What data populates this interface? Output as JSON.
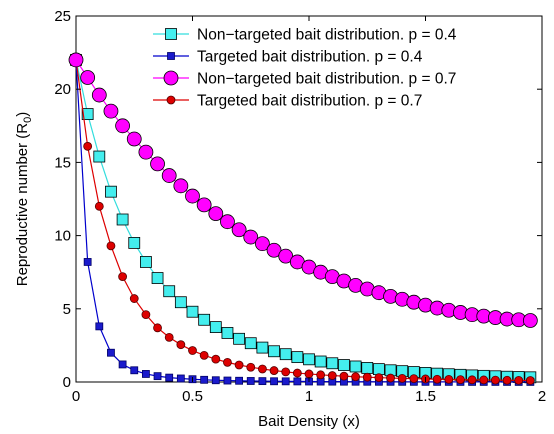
{
  "chart_data": {
    "type": "line",
    "xlabel": "Bait Density (x)",
    "ylabel_main": "Reproductive number (R",
    "ylabel_sub": "0",
    "ylabel_tail": ")",
    "xlim": [
      0,
      2
    ],
    "ylim": [
      0,
      25
    ],
    "xticks": [
      0,
      0.5,
      1,
      1.5,
      2
    ],
    "xtick_labels": [
      "0",
      "0.5",
      "1",
      "1.5",
      "2"
    ],
    "yticks": [
      0,
      5,
      10,
      15,
      20,
      25
    ],
    "ytick_labels": [
      "0",
      "5",
      "10",
      "15",
      "20",
      "25"
    ],
    "legend_position": "top-right",
    "grid": false,
    "x": [
      0,
      0.05,
      0.1,
      0.15,
      0.2,
      0.25,
      0.3,
      0.35,
      0.4,
      0.45,
      0.5,
      0.55,
      0.6,
      0.65,
      0.7,
      0.75,
      0.8,
      0.85,
      0.9,
      0.95,
      1,
      1.05,
      1.1,
      1.15,
      1.2,
      1.25,
      1.3,
      1.35,
      1.4,
      1.45,
      1.5,
      1.55,
      1.6,
      1.65,
      1.7,
      1.75,
      1.8,
      1.85,
      1.9,
      1.95
    ],
    "series": [
      {
        "name": "Non−targeted bait distribution. p = 0.4",
        "line_color": "#33dddd",
        "marker": "square",
        "marker_fill": "#44eeee",
        "marker_edge": "#000000",
        "values": [
          22.0,
          18.3,
          15.4,
          13.0,
          11.1,
          9.5,
          8.2,
          7.1,
          6.2,
          5.45,
          4.8,
          4.25,
          3.75,
          3.35,
          2.95,
          2.65,
          2.35,
          2.1,
          1.9,
          1.7,
          1.55,
          1.4,
          1.28,
          1.16,
          1.06,
          0.96,
          0.88,
          0.8,
          0.74,
          0.68,
          0.62,
          0.57,
          0.53,
          0.49,
          0.45,
          0.42,
          0.39,
          0.36,
          0.34,
          0.32
        ]
      },
      {
        "name": "Targeted bait distribution. p = 0.4",
        "line_color": "#0000cc",
        "marker": "square",
        "marker_fill": "#1a1acc",
        "marker_edge": "#000066",
        "values": [
          22.0,
          8.2,
          3.8,
          2.0,
          1.2,
          0.8,
          0.55,
          0.4,
          0.3,
          0.24,
          0.19,
          0.15,
          0.12,
          0.1,
          0.085,
          0.07,
          0.06,
          0.05,
          0.045,
          0.04,
          0.035,
          0.03,
          0.027,
          0.024,
          0.021,
          0.019,
          0.017,
          0.015,
          0.014,
          0.013,
          0.012,
          0.011,
          0.01,
          0.009,
          0.008,
          0.008,
          0.007,
          0.007,
          0.006,
          0.006
        ]
      },
      {
        "name": "Non−targeted bait distribution. p = 0.7",
        "line_color": "#ff00ff",
        "marker": "circle",
        "marker_fill": "#ff00ff",
        "marker_edge": "#000000",
        "values": [
          22.0,
          20.8,
          19.6,
          18.5,
          17.5,
          16.6,
          15.7,
          14.9,
          14.1,
          13.4,
          12.7,
          12.1,
          11.5,
          10.95,
          10.4,
          9.9,
          9.45,
          9.0,
          8.6,
          8.2,
          7.85,
          7.5,
          7.2,
          6.9,
          6.6,
          6.35,
          6.1,
          5.85,
          5.65,
          5.45,
          5.25,
          5.05,
          4.9,
          4.75,
          4.6,
          4.5,
          4.4,
          4.3,
          4.25,
          4.2
        ]
      },
      {
        "name": "Targeted bait distribution. p = 0.7",
        "line_color": "#dd0000",
        "marker": "circle",
        "marker_fill": "#dd0000",
        "marker_edge": "#550000",
        "values": [
          22.0,
          16.1,
          12.0,
          9.3,
          7.2,
          5.7,
          4.6,
          3.7,
          3.05,
          2.55,
          2.15,
          1.82,
          1.56,
          1.34,
          1.16,
          1.01,
          0.89,
          0.78,
          0.69,
          0.61,
          0.55,
          0.49,
          0.44,
          0.4,
          0.36,
          0.33,
          0.3,
          0.27,
          0.25,
          0.23,
          0.21,
          0.19,
          0.18,
          0.16,
          0.15,
          0.14,
          0.13,
          0.12,
          0.11,
          0.1
        ]
      }
    ]
  }
}
